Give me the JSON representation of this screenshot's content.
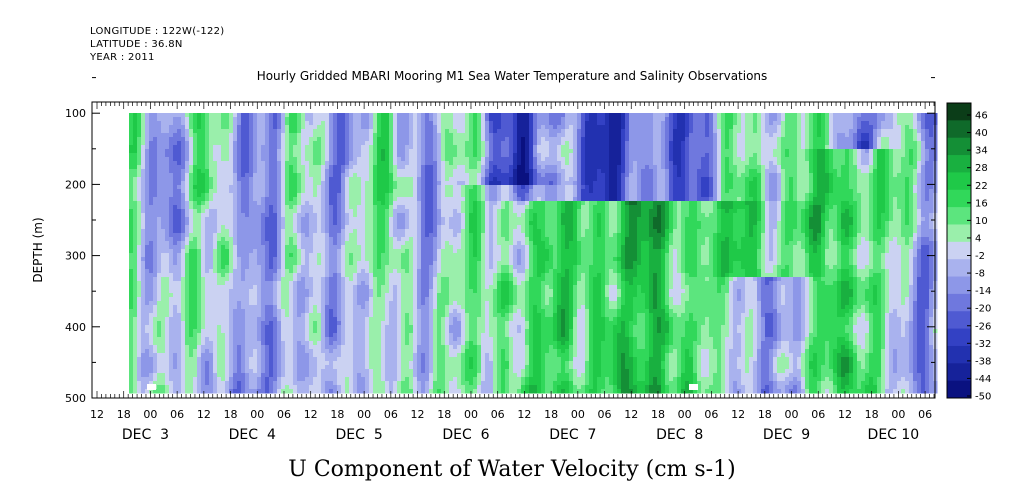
{
  "header": {
    "longitude": "LONGITUDE : 122W(-122)",
    "latitude": "LATITUDE : 36.8N",
    "year": "YEAR : 2011"
  },
  "chart_data": {
    "type": "heatmap",
    "title": "Hourly Gridded MBARI Mooring M1 Sea Water Temperature and Salinity Observations",
    "xlabel": "U Component of Water Velocity (cm s-1)",
    "ylabel": "DEPTH (m)",
    "y_ticks": [
      100,
      200,
      300,
      400,
      500
    ],
    "ylim": [
      500,
      10
    ],
    "x_hour_ticks": [
      "12",
      "18",
      "00",
      "06",
      "12",
      "18",
      "00",
      "06",
      "12",
      "18",
      "00",
      "06",
      "12",
      "18",
      "00",
      "06",
      "12",
      "18",
      "00",
      "06",
      "12",
      "18",
      "00",
      "06",
      "12",
      "18",
      "00",
      "06",
      "12",
      "18",
      "00",
      "06"
    ],
    "x_day_labels": [
      "DEC  3",
      "DEC  4",
      "DEC  5",
      "DEC  6",
      "DEC  7",
      "DEC  8",
      "DEC  9",
      "DEC 10"
    ],
    "colorbar": {
      "labels": [
        "46",
        "40",
        "34",
        "28",
        "22",
        "16",
        "10",
        "4",
        "-2",
        "-8",
        "-14",
        "-20",
        "-26",
        "-32",
        "-38",
        "-44",
        "-50"
      ],
      "range": [
        -50,
        50
      ],
      "colors_top_to_bottom": [
        "#0b3d18",
        "#0f6a2a",
        "#148f36",
        "#19b040",
        "#1fc948",
        "#31d85a",
        "#5ce57e",
        "#9aefab",
        "#cbd2f2",
        "#a9b2ee",
        "#8d97e8",
        "#6f78de",
        "#4f5ad2",
        "#3341c4",
        "#2231b0",
        "#16229a",
        "#0a1180"
      ]
    },
    "x_range_days": "2011-12-02 12:00 to 2011-12-10 08:00",
    "depth_range_m": [
      20,
      490
    ],
    "pattern_note_columns": [
      {
        "day": "DEC 3 00",
        "profile": "mixed positive/negative, weak"
      },
      {
        "day": "DEC 4 00",
        "profile": "weak negative mid-depth, positive patches"
      },
      {
        "day": "DEC 5 12",
        "profile": "alternating positive streaks deep"
      },
      {
        "day": "DEC 6 00",
        "profile": "negative upper 200m, positive below"
      },
      {
        "day": "DEC 7 00",
        "profile": "strong negative 50-200m, strong positive below 200m"
      },
      {
        "day": "DEC 7 12",
        "profile": "strong negative upper, positive deep"
      },
      {
        "day": "DEC 8 12",
        "profile": "positive upper/mid, negative deep"
      },
      {
        "day": "DEC 9 12",
        "profile": "positive mid/deep"
      },
      {
        "day": "DEC 10 00",
        "profile": "negative mid-depth"
      }
    ]
  }
}
